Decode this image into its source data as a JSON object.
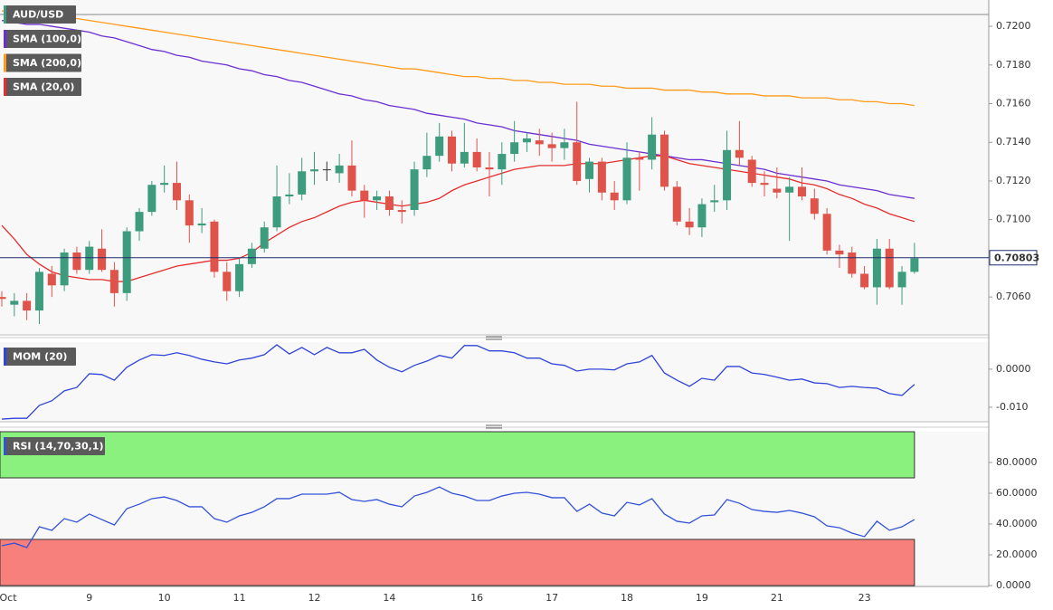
{
  "chart_data": [
    {
      "type": "candlestick",
      "title": "AUD/USD",
      "categories": [
        "Oct",
        null,
        null,
        null,
        null,
        null,
        null,
        "9",
        null,
        null,
        null,
        null,
        null,
        "10",
        null,
        null,
        null,
        null,
        null,
        "11",
        null,
        null,
        null,
        null,
        null,
        "12",
        null,
        null,
        null,
        null,
        null,
        "14",
        null,
        null,
        null,
        null,
        null,
        null,
        "16",
        null,
        null,
        null,
        null,
        null,
        "17",
        null,
        null,
        null,
        null,
        null,
        "18",
        null,
        null,
        null,
        null,
        null,
        "19",
        null,
        null,
        null,
        null,
        null,
        "21",
        null,
        null,
        null,
        null,
        null,
        null,
        "23",
        null,
        null,
        null,
        null
      ],
      "open": [
        0.706,
        0.7056,
        0.7058,
        0.7053,
        0.7072,
        0.7066,
        0.7083,
        0.7074,
        0.7085,
        0.7074,
        0.7062,
        0.7094,
        0.7104,
        0.7118,
        0.7119,
        0.711,
        0.7097,
        0.7099,
        0.7073,
        0.7063,
        0.7077,
        0.7085,
        0.7096,
        0.7112,
        0.7113,
        0.7125,
        0.7126,
        0.7124,
        0.7128,
        0.7115,
        0.711,
        0.7112,
        0.7105,
        0.7105,
        0.7126,
        0.7133,
        0.7143,
        0.7129,
        0.7135,
        0.7127,
        0.7126,
        0.7134,
        0.714,
        0.7141,
        0.7139,
        0.7137,
        0.714,
        0.7121,
        0.713,
        0.7114,
        0.711,
        0.7132,
        0.7131,
        0.7144,
        0.7117,
        0.7099,
        0.7096,
        0.7109,
        0.711,
        0.7136,
        0.7131,
        0.7119,
        0.7116,
        0.7114,
        0.7117,
        0.7111,
        0.7103,
        0.7084,
        0.7083,
        0.7072,
        0.7065,
        0.7085,
        0.7065,
        0.7073
      ],
      "high": [
        0.7063,
        0.7062,
        0.7062,
        0.7075,
        0.7076,
        0.7085,
        0.7086,
        0.7089,
        0.7095,
        0.7078,
        0.7096,
        0.7106,
        0.712,
        0.7128,
        0.713,
        0.7113,
        0.7106,
        0.71,
        0.7078,
        0.708,
        0.7088,
        0.7099,
        0.7128,
        0.7124,
        0.7132,
        0.7135,
        0.713,
        0.7134,
        0.7141,
        0.7118,
        0.7115,
        0.7115,
        0.711,
        0.713,
        0.7145,
        0.715,
        0.7146,
        0.715,
        0.7142,
        0.7135,
        0.714,
        0.7151,
        0.7145,
        0.7147,
        0.7145,
        0.7147,
        0.7161,
        0.7132,
        0.7132,
        0.712,
        0.714,
        0.7135,
        0.7153,
        0.7146,
        0.712,
        0.7106,
        0.7111,
        0.7118,
        0.7146,
        0.7151,
        0.7133,
        0.7125,
        0.7127,
        0.7122,
        0.7127,
        0.7116,
        0.7106,
        0.7087,
        0.7086,
        0.7076,
        0.709,
        0.709,
        0.7076,
        0.7088
      ],
      "low": [
        0.7055,
        0.705,
        0.7048,
        0.7046,
        0.706,
        0.7063,
        0.7072,
        0.7072,
        0.7073,
        0.7055,
        0.7058,
        0.7089,
        0.7102,
        0.7114,
        0.7105,
        0.7088,
        0.7093,
        0.707,
        0.7058,
        0.706,
        0.7075,
        0.7083,
        0.7094,
        0.7108,
        0.711,
        0.7118,
        0.712,
        0.7119,
        0.7112,
        0.7101,
        0.7105,
        0.7102,
        0.7098,
        0.7102,
        0.7122,
        0.713,
        0.7125,
        0.7127,
        0.7125,
        0.7112,
        0.7118,
        0.713,
        0.7135,
        0.7133,
        0.713,
        0.7131,
        0.7118,
        0.7114,
        0.711,
        0.7105,
        0.7108,
        0.7115,
        0.7126,
        0.7115,
        0.7097,
        0.7092,
        0.7091,
        0.7104,
        0.7105,
        0.7128,
        0.7117,
        0.7112,
        0.7111,
        0.7089,
        0.711,
        0.71,
        0.7082,
        0.7075,
        0.707,
        0.7064,
        0.7056,
        0.7064,
        0.7056,
        0.7072
      ],
      "close": [
        0.7059,
        0.7058,
        0.7053,
        0.7073,
        0.7066,
        0.7083,
        0.7074,
        0.7086,
        0.7074,
        0.7062,
        0.7094,
        0.7104,
        0.7118,
        0.7119,
        0.711,
        0.7097,
        0.7098,
        0.7073,
        0.7063,
        0.7077,
        0.7085,
        0.7096,
        0.7112,
        0.7113,
        0.7125,
        0.7126,
        0.7126,
        0.7128,
        0.7115,
        0.711,
        0.7112,
        0.7105,
        0.7104,
        0.7126,
        0.7133,
        0.7143,
        0.7129,
        0.7135,
        0.7127,
        0.7126,
        0.7134,
        0.714,
        0.7142,
        0.7139,
        0.7137,
        0.714,
        0.712,
        0.713,
        0.7114,
        0.711,
        0.7132,
        0.7131,
        0.7144,
        0.7117,
        0.7099,
        0.7096,
        0.7108,
        0.711,
        0.7136,
        0.7132,
        0.7119,
        0.7118,
        0.7114,
        0.7117,
        0.7112,
        0.7103,
        0.7084,
        0.7082,
        0.7072,
        0.7065,
        0.7085,
        0.7065,
        0.7073,
        0.708
      ],
      "up_color": "#3d9c7e",
      "down_color": "#e0534a",
      "color": "#3d9c7e",
      "series": [
        {
          "name": "SMA (100,0)",
          "color": "#6a2fd0",
          "values": [
            0.7203,
            0.7202,
            0.7201,
            0.7201,
            0.72,
            0.7199,
            0.7198,
            0.7197,
            0.7195,
            0.7194,
            0.7192,
            0.719,
            0.7188,
            0.7187,
            0.7185,
            0.7184,
            0.7182,
            0.7181,
            0.718,
            0.7178,
            0.7177,
            0.7175,
            0.7174,
            0.7172,
            0.7171,
            0.7169,
            0.7167,
            0.7165,
            0.7164,
            0.7162,
            0.7161,
            0.7159,
            0.7158,
            0.7157,
            0.7155,
            0.7154,
            0.7153,
            0.7152,
            0.715,
            0.7149,
            0.7148,
            0.7146,
            0.7145,
            0.7144,
            0.7143,
            0.7142,
            0.7141,
            0.7139,
            0.7138,
            0.7137,
            0.7136,
            0.7135,
            0.7134,
            0.7133,
            0.7132,
            0.7131,
            0.7131,
            0.713,
            0.7129,
            0.7128,
            0.7127,
            0.7126,
            0.7124,
            0.7123,
            0.7122,
            0.7121,
            0.712,
            0.7118,
            0.7117,
            0.7116,
            0.7115,
            0.7113,
            0.7112,
            0.7111
          ]
        },
        {
          "name": "SMA (200,0)",
          "color": "#ff9a1a",
          "values": [
            0.7208,
            0.7207,
            0.7207,
            0.7206,
            0.7205,
            0.7205,
            0.7204,
            0.7203,
            0.7202,
            0.7201,
            0.72,
            0.7199,
            0.7198,
            0.7197,
            0.7196,
            0.7195,
            0.7194,
            0.7193,
            0.7192,
            0.7191,
            0.719,
            0.7189,
            0.7188,
            0.7187,
            0.7186,
            0.7185,
            0.7184,
            0.7183,
            0.7182,
            0.7181,
            0.718,
            0.7179,
            0.7178,
            0.7178,
            0.7177,
            0.7176,
            0.7175,
            0.7174,
            0.7174,
            0.7173,
            0.7173,
            0.7172,
            0.7172,
            0.7171,
            0.7171,
            0.717,
            0.717,
            0.717,
            0.7169,
            0.7169,
            0.7168,
            0.7168,
            0.7168,
            0.7167,
            0.7167,
            0.7167,
            0.7166,
            0.7166,
            0.7165,
            0.7165,
            0.7165,
            0.7164,
            0.7164,
            0.7164,
            0.7163,
            0.7163,
            0.7163,
            0.7162,
            0.7162,
            0.7161,
            0.7161,
            0.716,
            0.716,
            0.7159
          ]
        },
        {
          "name": "SMA (20,0)",
          "color": "#e62d2d",
          "values": [
            0.7097,
            0.709,
            0.7082,
            0.7077,
            0.7073,
            0.7071,
            0.707,
            0.7069,
            0.7069,
            0.7068,
            0.7068,
            0.707,
            0.7072,
            0.7074,
            0.7076,
            0.7077,
            0.7078,
            0.7079,
            0.7079,
            0.708,
            0.7083,
            0.7088,
            0.7092,
            0.7096,
            0.7099,
            0.7101,
            0.7104,
            0.7107,
            0.7109,
            0.711,
            0.7109,
            0.7108,
            0.7107,
            0.7108,
            0.7109,
            0.7111,
            0.7115,
            0.7118,
            0.712,
            0.7122,
            0.7124,
            0.7126,
            0.7127,
            0.7128,
            0.7128,
            0.7128,
            0.7129,
            0.7129,
            0.7129,
            0.713,
            0.7131,
            0.7132,
            0.7133,
            0.7133,
            0.7131,
            0.7129,
            0.7128,
            0.7127,
            0.7126,
            0.7125,
            0.7124,
            0.7123,
            0.7122,
            0.7121,
            0.7119,
            0.7118,
            0.7116,
            0.7113,
            0.7111,
            0.7108,
            0.7106,
            0.7103,
            0.7101,
            0.7099
          ]
        }
      ],
      "last_price": 0.70803,
      "last_price_color": "#1f2d6b",
      "ylim": [
        0.70404,
        0.72136
      ],
      "yticks": [
        {
          "value": 0.706,
          "label": "0.7060"
        },
        {
          "value": 0.708,
          "label": "0.7080"
        },
        {
          "value": 0.71,
          "label": "0.7100"
        },
        {
          "value": 0.712,
          "label": "0.7120"
        },
        {
          "value": 0.714,
          "label": "0.7140"
        },
        {
          "value": 0.716,
          "label": "0.7160"
        },
        {
          "value": 0.718,
          "label": "0.7180"
        },
        {
          "value": 0.72,
          "label": "0.7200"
        }
      ]
    },
    {
      "type": "line",
      "series": [
        {
          "name": "MOM (20)",
          "color": "#2f44d8",
          "values": [
            -0.0131,
            -0.0129,
            -0.0129,
            -0.0095,
            -0.0083,
            -0.0057,
            -0.0048,
            -0.0012,
            -0.0014,
            -0.0029,
            0.0005,
            0.0024,
            0.0038,
            0.0036,
            0.0043,
            0.0036,
            0.0026,
            0.0019,
            0.0014,
            0.0024,
            0.0029,
            0.0038,
            0.0064,
            0.004,
            0.0057,
            0.0038,
            0.0057,
            0.0043,
            0.0043,
            0.0052,
            0.0024,
            0.0005,
            -0.0007,
            0.001,
            0.0021,
            0.0036,
            0.0029,
            0.0062,
            0.0062,
            0.0048,
            0.0048,
            0.0043,
            0.0029,
            0.0029,
            0.0014,
            0.001,
            -0.0005,
            0.0,
            0.0,
            -0.0002,
            0.0014,
            0.0019,
            0.0036,
            -0.001,
            -0.0029,
            -0.0045,
            -0.0024,
            -0.0029,
            0.0007,
            0.0007,
            -0.001,
            -0.0014,
            -0.0021,
            -0.0029,
            -0.0026,
            -0.0036,
            -0.0038,
            -0.0048,
            -0.0045,
            -0.0048,
            -0.005,
            -0.0064,
            -0.0069,
            -0.004
          ]
        }
      ],
      "ylim": [
        -0.0138,
        0.0071
      ],
      "yticks": [
        {
          "value": -0.01,
          "label": "-0.010"
        },
        {
          "value": 0,
          "label": "0.0000"
        }
      ]
    },
    {
      "type": "line",
      "series": [
        {
          "name": "RSI (14,70,30,1)",
          "color": "#3352d8",
          "values": [
            25.9,
            27.6,
            24.7,
            38.2,
            35.9,
            43.5,
            41.2,
            46.5,
            42.9,
            39.4,
            50.0,
            52.9,
            56.5,
            57.6,
            55.3,
            51.2,
            51.2,
            43.5,
            41.2,
            45.3,
            47.6,
            51.2,
            56.5,
            56.5,
            59.4,
            59.4,
            59.4,
            60.6,
            55.9,
            54.7,
            55.9,
            52.9,
            51.2,
            58.2,
            60.6,
            64.1,
            60.0,
            58.2,
            55.3,
            55.3,
            58.2,
            60.0,
            60.6,
            59.4,
            57.1,
            57.1,
            48.2,
            52.9,
            47.1,
            45.3,
            54.1,
            52.4,
            56.5,
            46.5,
            41.8,
            40.6,
            45.3,
            45.9,
            55.9,
            53.5,
            49.4,
            48.2,
            47.6,
            48.8,
            47.1,
            44.7,
            38.8,
            37.6,
            34.1,
            31.8,
            41.8,
            35.9,
            38.2,
            42.9
          ]
        }
      ],
      "bands": [
        70,
        30
      ],
      "band_colors": [
        "#8af07e",
        "#f77f7c"
      ],
      "ylim": [
        0,
        100
      ],
      "yticks": [
        {
          "value": 0,
          "label": "0.0000"
        },
        {
          "value": 20,
          "label": "20.0000"
        },
        {
          "value": 40,
          "label": "40.0000"
        },
        {
          "value": 60,
          "label": "60.0000"
        },
        {
          "value": 80,
          "label": "80.0000"
        }
      ]
    }
  ]
}
